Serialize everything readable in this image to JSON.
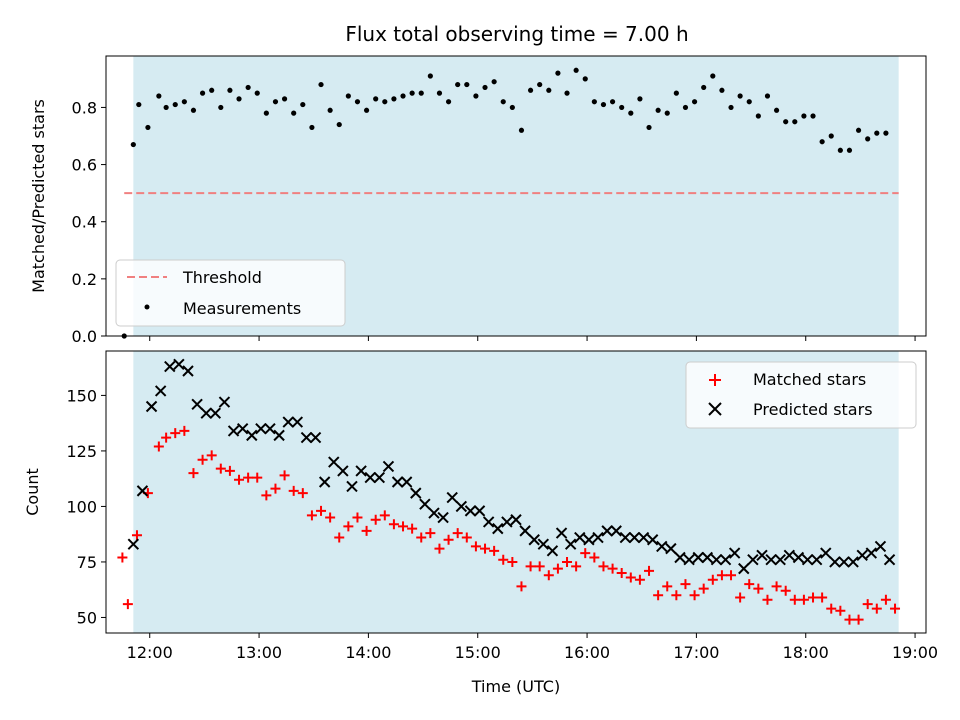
{
  "title": "Flux total observing time = 7.00 h",
  "colors": {
    "band": "#add8e6",
    "threshold": "#f08080",
    "measurements": "#000000",
    "matched": "#ff0000",
    "predicted": "#000000"
  },
  "chart_data": [
    {
      "type": "scatter",
      "panel": "top",
      "ylabel": "Matched/Predicted stars",
      "xlabel": "",
      "xlim": [
        "11:36",
        "19:06"
      ],
      "ylim": [
        0.0,
        0.98
      ],
      "yticks": [
        "0.0",
        "0.2",
        "0.4",
        "0.6",
        "0.8"
      ],
      "shaded_span": [
        "11:51",
        "18:51"
      ],
      "legend": {
        "placement": "lower-left",
        "entries": [
          "Threshold",
          "Measurements"
        ]
      },
      "threshold": {
        "name": "Threshold",
        "y": 0.5,
        "x_range": [
          "11:46",
          "18:51"
        ]
      },
      "series": [
        {
          "name": "Measurements",
          "points": [
            [
              "11:46",
              0.0
            ],
            [
              "11:51",
              0.67
            ],
            [
              "11:54",
              0.81
            ],
            [
              "11:59",
              0.73
            ],
            [
              "12:05",
              0.84
            ],
            [
              "12:09",
              0.8
            ],
            [
              "12:14",
              0.81
            ],
            [
              "12:19",
              0.82
            ],
            [
              "12:24",
              0.79
            ],
            [
              "12:29",
              0.85
            ],
            [
              "12:34",
              0.86
            ],
            [
              "12:39",
              0.8
            ],
            [
              "12:44",
              0.86
            ],
            [
              "12:49",
              0.83
            ],
            [
              "12:54",
              0.87
            ],
            [
              "12:59",
              0.85
            ],
            [
              "13:04",
              0.78
            ],
            [
              "13:09",
              0.82
            ],
            [
              "13:14",
              0.83
            ],
            [
              "13:19",
              0.78
            ],
            [
              "13:24",
              0.81
            ],
            [
              "13:29",
              0.73
            ],
            [
              "13:34",
              0.88
            ],
            [
              "13:39",
              0.79
            ],
            [
              "13:44",
              0.74
            ],
            [
              "13:49",
              0.84
            ],
            [
              "13:54",
              0.82
            ],
            [
              "13:59",
              0.79
            ],
            [
              "14:04",
              0.83
            ],
            [
              "14:09",
              0.82
            ],
            [
              "14:14",
              0.83
            ],
            [
              "14:19",
              0.84
            ],
            [
              "14:24",
              0.85
            ],
            [
              "14:29",
              0.85
            ],
            [
              "14:34",
              0.91
            ],
            [
              "14:39",
              0.85
            ],
            [
              "14:44",
              0.82
            ],
            [
              "14:49",
              0.88
            ],
            [
              "14:54",
              0.88
            ],
            [
              "14:59",
              0.84
            ],
            [
              "15:04",
              0.87
            ],
            [
              "15:09",
              0.89
            ],
            [
              "15:14",
              0.82
            ],
            [
              "15:19",
              0.8
            ],
            [
              "15:24",
              0.72
            ],
            [
              "15:29",
              0.86
            ],
            [
              "15:34",
              0.88
            ],
            [
              "15:39",
              0.86
            ],
            [
              "15:44",
              0.92
            ],
            [
              "15:49",
              0.85
            ],
            [
              "15:54",
              0.93
            ],
            [
              "15:59",
              0.9
            ],
            [
              "16:04",
              0.82
            ],
            [
              "16:09",
              0.81
            ],
            [
              "16:14",
              0.82
            ],
            [
              "16:19",
              0.8
            ],
            [
              "16:24",
              0.78
            ],
            [
              "16:29",
              0.83
            ],
            [
              "16:34",
              0.73
            ],
            [
              "16:39",
              0.79
            ],
            [
              "16:44",
              0.78
            ],
            [
              "16:49",
              0.85
            ],
            [
              "16:54",
              0.8
            ],
            [
              "16:59",
              0.82
            ],
            [
              "17:04",
              0.87
            ],
            [
              "17:09",
              0.91
            ],
            [
              "17:14",
              0.86
            ],
            [
              "17:19",
              0.8
            ],
            [
              "17:24",
              0.84
            ],
            [
              "17:29",
              0.82
            ],
            [
              "17:34",
              0.77
            ],
            [
              "17:39",
              0.84
            ],
            [
              "17:44",
              0.79
            ],
            [
              "17:49",
              0.75
            ],
            [
              "17:54",
              0.75
            ],
            [
              "17:59",
              0.77
            ],
            [
              "18:04",
              0.77
            ],
            [
              "18:09",
              0.68
            ],
            [
              "18:14",
              0.7
            ],
            [
              "18:19",
              0.65
            ],
            [
              "18:24",
              0.65
            ],
            [
              "18:29",
              0.72
            ],
            [
              "18:34",
              0.69
            ],
            [
              "18:39",
              0.71
            ],
            [
              "18:44",
              0.71
            ]
          ]
        }
      ]
    },
    {
      "type": "scatter",
      "panel": "bottom",
      "ylabel": "Count",
      "xlabel": "Time (UTC)",
      "xlim": [
        "11:36",
        "19:06"
      ],
      "ylim": [
        43,
        170
      ],
      "yticks": [
        "50",
        "75",
        "100",
        "125",
        "150"
      ],
      "xticks": [
        "12:00",
        "13:00",
        "14:00",
        "15:00",
        "16:00",
        "17:00",
        "18:00",
        "19:00"
      ],
      "shaded_span": [
        "11:51",
        "18:51"
      ],
      "legend": {
        "placement": "top-right",
        "entries": [
          "Matched stars",
          "Predicted stars"
        ]
      },
      "series": [
        {
          "name": "Matched stars",
          "marker": "plus",
          "points": [
            [
              "11:45",
              77
            ],
            [
              "11:48",
              56
            ],
            [
              "11:53",
              87
            ],
            [
              "11:59",
              106
            ],
            [
              "12:05",
              127
            ],
            [
              "12:09",
              131
            ],
            [
              "12:14",
              133
            ],
            [
              "12:19",
              134
            ],
            [
              "12:24",
              115
            ],
            [
              "12:29",
              121
            ],
            [
              "12:34",
              123
            ],
            [
              "12:39",
              117
            ],
            [
              "12:44",
              116
            ],
            [
              "12:49",
              112
            ],
            [
              "12:54",
              113
            ],
            [
              "12:59",
              113
            ],
            [
              "13:04",
              105
            ],
            [
              "13:09",
              108
            ],
            [
              "13:14",
              114
            ],
            [
              "13:19",
              107
            ],
            [
              "13:24",
              106
            ],
            [
              "13:29",
              96
            ],
            [
              "13:34",
              98
            ],
            [
              "13:39",
              95
            ],
            [
              "13:44",
              86
            ],
            [
              "13:49",
              91
            ],
            [
              "13:54",
              95
            ],
            [
              "13:59",
              89
            ],
            [
              "14:04",
              94
            ],
            [
              "14:09",
              96
            ],
            [
              "14:14",
              92
            ],
            [
              "14:19",
              91
            ],
            [
              "14:24",
              90
            ],
            [
              "14:29",
              86
            ],
            [
              "14:34",
              88
            ],
            [
              "14:39",
              81
            ],
            [
              "14:44",
              85
            ],
            [
              "14:49",
              88
            ],
            [
              "14:54",
              86
            ],
            [
              "14:59",
              82
            ],
            [
              "15:04",
              81
            ],
            [
              "15:09",
              80
            ],
            [
              "15:14",
              76
            ],
            [
              "15:19",
              75
            ],
            [
              "15:24",
              64
            ],
            [
              "15:29",
              73
            ],
            [
              "15:34",
              73
            ],
            [
              "15:39",
              69
            ],
            [
              "15:44",
              72
            ],
            [
              "15:49",
              75
            ],
            [
              "15:54",
              73
            ],
            [
              "15:59",
              79
            ],
            [
              "16:04",
              77
            ],
            [
              "16:09",
              73
            ],
            [
              "16:14",
              72
            ],
            [
              "16:19",
              70
            ],
            [
              "16:24",
              68
            ],
            [
              "16:29",
              67
            ],
            [
              "16:34",
              71
            ],
            [
              "16:39",
              60
            ],
            [
              "16:44",
              64
            ],
            [
              "16:49",
              60
            ],
            [
              "16:54",
              65
            ],
            [
              "16:59",
              60
            ],
            [
              "17:04",
              63
            ],
            [
              "17:09",
              67
            ],
            [
              "17:14",
              69
            ],
            [
              "17:19",
              69
            ],
            [
              "17:24",
              59
            ],
            [
              "17:29",
              65
            ],
            [
              "17:34",
              63
            ],
            [
              "17:39",
              58
            ],
            [
              "17:44",
              64
            ],
            [
              "17:49",
              62
            ],
            [
              "17:54",
              58
            ],
            [
              "17:59",
              58
            ],
            [
              "18:04",
              59
            ],
            [
              "18:09",
              59
            ],
            [
              "18:14",
              54
            ],
            [
              "18:19",
              53
            ],
            [
              "18:24",
              49
            ],
            [
              "18:29",
              49
            ],
            [
              "18:34",
              56
            ],
            [
              "18:39",
              54
            ],
            [
              "18:44",
              58
            ],
            [
              "18:49",
              54
            ]
          ]
        },
        {
          "name": "Predicted stars",
          "marker": "x",
          "points": [
            [
              "11:51",
              83
            ],
            [
              "11:56",
              107
            ],
            [
              "12:01",
              145
            ],
            [
              "12:06",
              152
            ],
            [
              "12:11",
              163
            ],
            [
              "12:16",
              164
            ],
            [
              "12:21",
              161
            ],
            [
              "12:26",
              146
            ],
            [
              "12:31",
              142
            ],
            [
              "12:36",
              142
            ],
            [
              "12:41",
              147
            ],
            [
              "12:46",
              134
            ],
            [
              "12:51",
              135
            ],
            [
              "12:56",
              132
            ],
            [
              "13:01",
              135
            ],
            [
              "13:06",
              135
            ],
            [
              "13:11",
              132
            ],
            [
              "13:16",
              138
            ],
            [
              "13:21",
              138
            ],
            [
              "13:26",
              131
            ],
            [
              "13:31",
              131
            ],
            [
              "13:36",
              111
            ],
            [
              "13:41",
              120
            ],
            [
              "13:46",
              116
            ],
            [
              "13:51",
              109
            ],
            [
              "13:56",
              116
            ],
            [
              "14:01",
              113
            ],
            [
              "14:06",
              113
            ],
            [
              "14:11",
              118
            ],
            [
              "14:16",
              111
            ],
            [
              "14:21",
              111
            ],
            [
              "14:26",
              106
            ],
            [
              "14:31",
              101
            ],
            [
              "14:36",
              97
            ],
            [
              "14:41",
              95
            ],
            [
              "14:46",
              104
            ],
            [
              "14:51",
              100
            ],
            [
              "14:56",
              98
            ],
            [
              "15:01",
              98
            ],
            [
              "15:06",
              93
            ],
            [
              "15:11",
              90
            ],
            [
              "15:16",
              93
            ],
            [
              "15:21",
              94
            ],
            [
              "15:26",
              89
            ],
            [
              "15:31",
              85
            ],
            [
              "15:36",
              83
            ],
            [
              "15:41",
              80
            ],
            [
              "15:46",
              88
            ],
            [
              "15:51",
              83
            ],
            [
              "15:56",
              86
            ],
            [
              "16:01",
              85
            ],
            [
              "16:06",
              86
            ],
            [
              "16:11",
              89
            ],
            [
              "16:16",
              89
            ],
            [
              "16:21",
              86
            ],
            [
              "16:26",
              86
            ],
            [
              "16:31",
              86
            ],
            [
              "16:36",
              85
            ],
            [
              "16:41",
              82
            ],
            [
              "16:46",
              81
            ],
            [
              "16:51",
              77
            ],
            [
              "16:56",
              76
            ],
            [
              "17:01",
              77
            ],
            [
              "17:06",
              77
            ],
            [
              "17:11",
              76
            ],
            [
              "17:16",
              76
            ],
            [
              "17:21",
              79
            ],
            [
              "17:26",
              72
            ],
            [
              "17:31",
              76
            ],
            [
              "17:36",
              78
            ],
            [
              "17:41",
              76
            ],
            [
              "17:46",
              76
            ],
            [
              "17:51",
              78
            ],
            [
              "17:56",
              77
            ],
            [
              "18:01",
              76
            ],
            [
              "18:06",
              76
            ],
            [
              "18:11",
              79
            ],
            [
              "18:16",
              75
            ],
            [
              "18:21",
              75
            ],
            [
              "18:26",
              75
            ],
            [
              "18:31",
              78
            ],
            [
              "18:36",
              79
            ],
            [
              "18:41",
              82
            ],
            [
              "18:46",
              76
            ]
          ]
        }
      ]
    }
  ]
}
